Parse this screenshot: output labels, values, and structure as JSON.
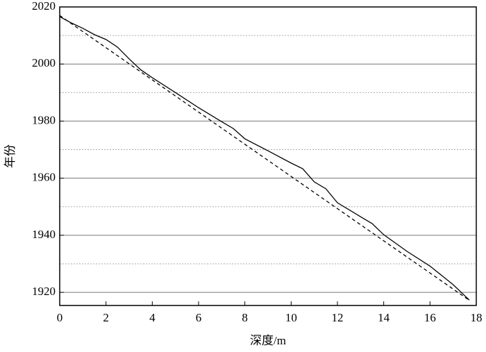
{
  "chart_data": {
    "type": "line",
    "x_label": "深度/m",
    "y_label": "年份",
    "xlim": [
      0,
      18
    ],
    "xticks": [
      0,
      2,
      4,
      6,
      8,
      10,
      12,
      14,
      16,
      18
    ],
    "ylim": [
      1915.4,
      2020
    ],
    "yticks": [
      1920,
      1940,
      1960,
      1980,
      2000,
      2020
    ],
    "grid": true,
    "minor_grid": [
      1930,
      1950,
      1970,
      1990,
      2010
    ],
    "series": [
      {
        "color": "#000000",
        "dash": false,
        "x": [
          0,
          0.5,
          1,
          1.5,
          2,
          2.5,
          3,
          3.5,
          4,
          5,
          6,
          7,
          7.5,
          8,
          9,
          10,
          10.5,
          11,
          11.5,
          12,
          13,
          13.5,
          14,
          15,
          16,
          17,
          17.7
        ],
        "values": [
          2016.6,
          2014.4,
          2012.5,
          2010.3,
          2008.6,
          2005.9,
          2001.8,
          1998,
          1995.2,
          1990,
          1984.7,
          1979.8,
          1977.4,
          1973.8,
          1969.6,
          1965.3,
          1963.3,
          1958.7,
          1956.3,
          1951.4,
          1946.5,
          1944.1,
          1940.2,
          1934.4,
          1929.2,
          1922.7,
          1917.3
        ]
      },
      {
        "color": "#000000",
        "dash": true,
        "x": [
          0,
          17.7
        ],
        "values": [
          2017,
          1917.2
        ]
      }
    ]
  }
}
